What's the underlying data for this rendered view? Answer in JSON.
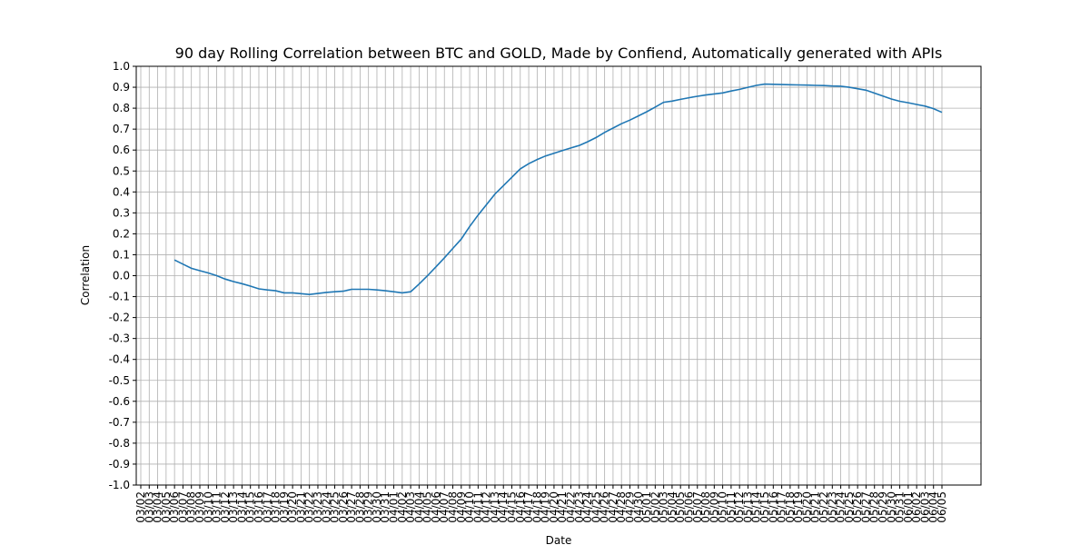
{
  "chart_data": {
    "type": "line",
    "title": "90 day Rolling Correlation between BTC and GOLD, Made by Confiend, Automatically generated with APIs",
    "xlabel": "Date",
    "ylabel": "Correlation",
    "categories": [
      "03/02",
      "03/03",
      "03/04",
      "03/05",
      "03/06",
      "03/07",
      "03/08",
      "03/09",
      "03/10",
      "03/11",
      "03/12",
      "03/13",
      "03/14",
      "03/15",
      "03/16",
      "03/17",
      "03/18",
      "03/19",
      "03/20",
      "03/21",
      "03/22",
      "03/23",
      "03/24",
      "03/25",
      "03/26",
      "03/27",
      "03/28",
      "03/29",
      "03/30",
      "03/31",
      "04/01",
      "04/02",
      "04/03",
      "04/04",
      "04/05",
      "04/06",
      "04/07",
      "04/08",
      "04/09",
      "04/10",
      "04/11",
      "04/12",
      "04/13",
      "04/14",
      "04/15",
      "04/16",
      "04/17",
      "04/18",
      "04/19",
      "04/20",
      "04/21",
      "04/22",
      "04/23",
      "04/24",
      "04/25",
      "04/26",
      "04/27",
      "04/28",
      "04/29",
      "04/30",
      "05/01",
      "05/02",
      "05/03",
      "05/04",
      "05/05",
      "05/06",
      "05/07",
      "05/08",
      "05/09",
      "05/10",
      "05/11",
      "05/12",
      "05/13",
      "05/14",
      "05/15",
      "05/16",
      "05/17",
      "05/18",
      "05/19",
      "05/20",
      "05/21",
      "05/22",
      "05/23",
      "05/24",
      "05/25",
      "05/26",
      "05/27",
      "05/28",
      "05/29",
      "05/30",
      "05/31",
      "06/01",
      "06/02",
      "06/03",
      "06/04",
      "06/05"
    ],
    "values": [
      null,
      null,
      null,
      null,
      0.075,
      0.055,
      0.035,
      0.024,
      0.013,
      0.0,
      -0.016,
      -0.028,
      -0.038,
      -0.05,
      -0.063,
      -0.068,
      -0.072,
      -0.082,
      -0.082,
      -0.086,
      -0.09,
      -0.085,
      -0.08,
      -0.077,
      -0.074,
      -0.065,
      -0.065,
      -0.065,
      -0.068,
      -0.072,
      -0.077,
      -0.082,
      -0.077,
      -0.04,
      0.0,
      0.042,
      0.085,
      0.13,
      0.175,
      0.235,
      0.29,
      0.34,
      0.39,
      0.43,
      0.47,
      0.51,
      0.535,
      0.555,
      0.572,
      0.585,
      0.598,
      0.61,
      0.622,
      0.64,
      0.66,
      0.684,
      0.705,
      0.726,
      0.743,
      0.763,
      0.783,
      0.805,
      0.828,
      0.834,
      0.842,
      0.85,
      0.857,
      0.863,
      0.868,
      0.873,
      0.882,
      0.89,
      0.9,
      0.909,
      0.915,
      0.914,
      0.913,
      0.912,
      0.911,
      0.91,
      0.909,
      0.908,
      0.906,
      0.905,
      0.9,
      0.893,
      0.886,
      0.872,
      0.858,
      0.844,
      0.833,
      0.826,
      0.818,
      0.81,
      0.798,
      0.78
    ],
    "color": "#1f77b4",
    "ylim": [
      -1.0,
      1.0
    ],
    "yticks": [
      {
        "value": -1,
        "label": "-1.0"
      },
      -0.9,
      -0.8,
      -0.7,
      -0.6,
      -0.5,
      -0.4,
      -0.3,
      -0.2,
      -0.1,
      {
        "value": 0,
        "label": "0.0"
      },
      0.1,
      0.2,
      0.3,
      0.4,
      0.5,
      0.6,
      0.7,
      0.8,
      0.9,
      {
        "value": 1,
        "label": "1.0"
      }
    ],
    "grid": true
  }
}
